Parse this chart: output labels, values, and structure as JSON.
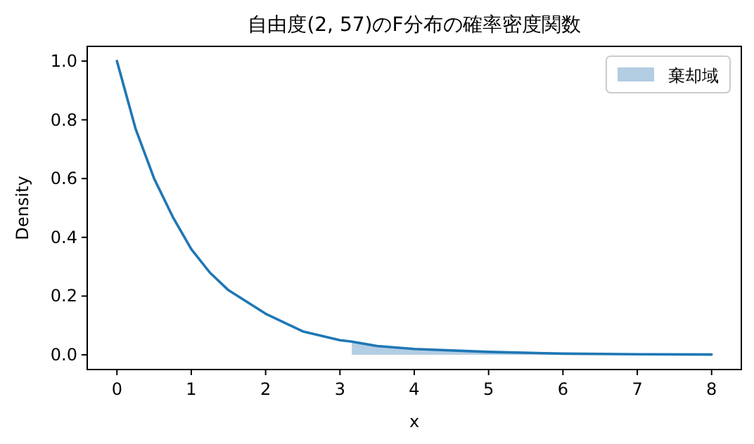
{
  "chart_data": {
    "type": "line",
    "title": "自由度(2, 57)のF分布の確率密度関数",
    "xlabel": "x",
    "ylabel": "Density",
    "series": [
      {
        "color": "#1f77b4",
        "x": [
          0,
          0.25,
          0.5,
          0.75,
          1,
          1.25,
          1.5,
          2,
          2.5,
          3,
          3.16,
          3.5,
          4,
          5,
          6,
          7,
          8
        ],
        "values": [
          1.0,
          0.77,
          0.6,
          0.47,
          0.36,
          0.28,
          0.22,
          0.14,
          0.08,
          0.05,
          0.045,
          0.03,
          0.02,
          0.01,
          0.004,
          0.002,
          0.001
        ]
      },
      {
        "type": "area",
        "name": "棄却域",
        "color": "#b3cde3",
        "x": [
          3.16,
          3.5,
          4,
          5,
          6,
          7,
          8
        ],
        "values": [
          0.045,
          0.03,
          0.02,
          0.01,
          0.004,
          0.002,
          0.001
        ]
      }
    ],
    "xlim": [
      -0.4,
      8.4
    ],
    "ylim": [
      -0.05,
      1.05
    ],
    "xticks": [
      0,
      1,
      2,
      3,
      4,
      5,
      6,
      7,
      8
    ],
    "yticks": [
      {
        "value": 0,
        "label": "0.0"
      },
      {
        "value": 0.2,
        "label": "0.2"
      },
      {
        "value": 0.4,
        "label": "0.4"
      },
      {
        "value": 0.6,
        "label": "0.6"
      },
      {
        "value": 0.8,
        "label": "0.8"
      },
      {
        "value": 1,
        "label": "1.0"
      }
    ],
    "grid": false,
    "legend": "top right"
  }
}
